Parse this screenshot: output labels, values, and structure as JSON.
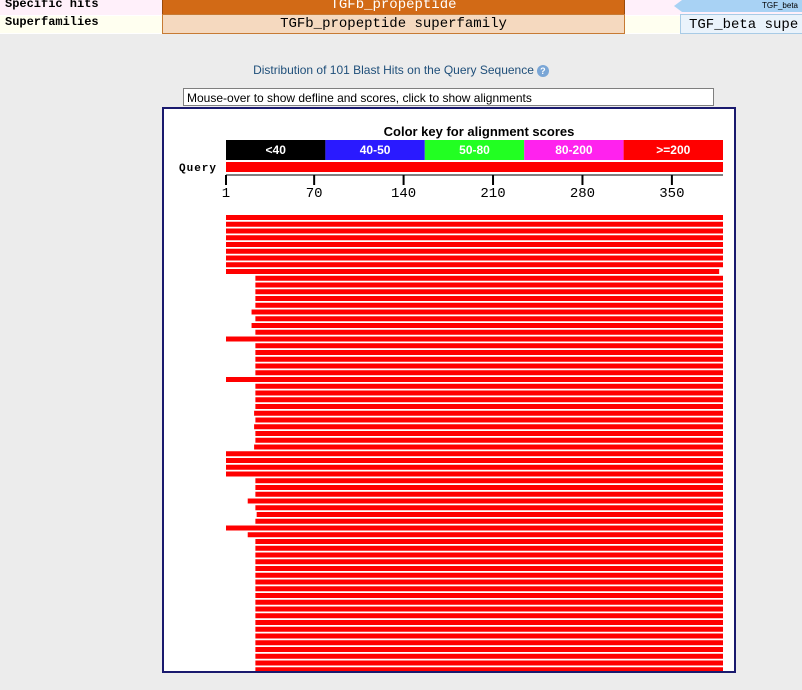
{
  "header_rows": {
    "specific_label": "Specific hits",
    "superfamilies_label": "Superfamilies",
    "specific_domain": "TGFb_propeptide",
    "superfamily_domain": "TGFb_propeptide superfamily",
    "right_specific": "TGF_beta",
    "right_superfamily": "TGF_beta supe"
  },
  "title": "Distribution of 101 Blast Hits on the Query Sequence",
  "help_icon": "help-icon",
  "defline_text": "Mouse-over to show defline and scores, click to show alignments",
  "color_key": {
    "title": "Color key for alignment scores",
    "bins": [
      {
        "label": "<40",
        "color": "#000000"
      },
      {
        "label": "40-50",
        "color": "#2a1aff"
      },
      {
        "label": "50-80",
        "color": "#22ff22"
      },
      {
        "label": "80-200",
        "color": "#ff22ee"
      },
      {
        "label": ">=200",
        "color": "#ff0000"
      }
    ]
  },
  "query": {
    "label": "Query",
    "length": 390,
    "ticks": [
      1,
      70,
      140,
      210,
      280,
      350
    ]
  },
  "hits": {
    "color": "#ff0000",
    "starts": [
      1,
      1,
      1,
      1,
      1,
      1,
      1,
      1,
      1,
      24,
      24,
      24,
      24,
      24,
      21,
      24,
      21,
      24,
      1,
      24,
      24,
      24,
      24,
      24,
      1,
      24,
      24,
      24,
      24,
      23,
      24,
      23,
      24,
      24,
      23,
      1,
      1,
      1,
      1,
      24,
      24,
      24,
      18,
      24,
      25,
      24,
      1,
      18,
      24,
      24,
      24,
      24,
      24,
      24,
      24,
      24,
      24,
      24,
      24,
      24,
      24,
      24,
      24,
      24,
      24,
      24,
      24,
      24
    ],
    "ends": [
      390,
      390,
      390,
      390,
      390,
      390,
      390,
      390,
      387,
      390,
      390,
      390,
      390,
      390,
      390,
      390,
      390,
      390,
      390,
      390,
      390,
      390,
      390,
      390,
      390,
      390,
      390,
      390,
      390,
      390,
      390,
      390,
      390,
      390,
      390,
      390,
      390,
      390,
      390,
      390,
      390,
      390,
      390,
      390,
      390,
      390,
      390,
      390,
      390,
      390,
      390,
      390,
      390,
      390,
      390,
      390,
      390,
      390,
      390,
      390,
      390,
      390,
      390,
      390,
      390,
      390,
      390,
      390
    ]
  }
}
